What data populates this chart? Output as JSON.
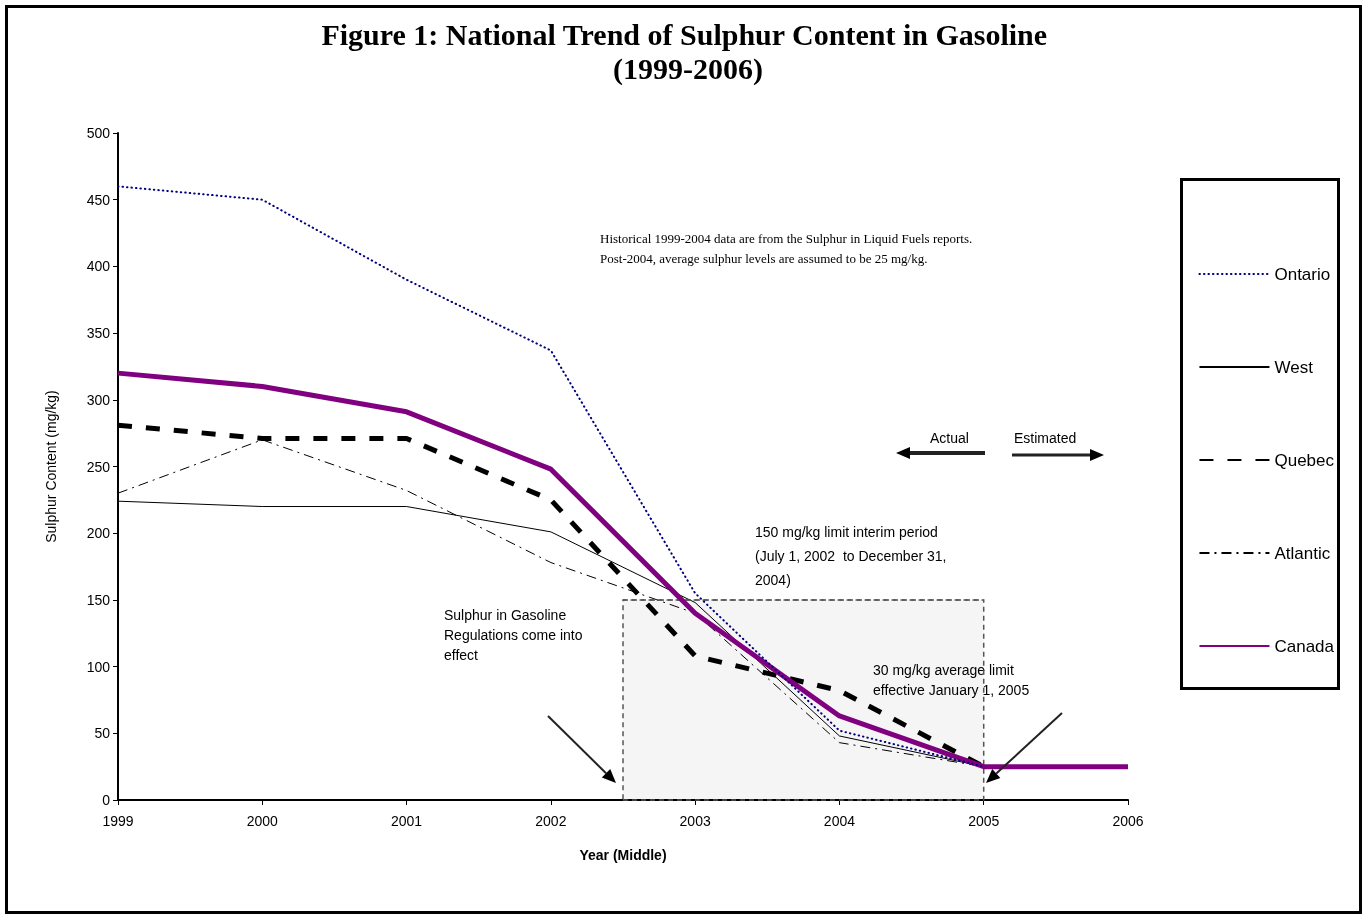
{
  "chart_data": {
    "type": "line",
    "title": "Figure 1: National Trend of Sulphur Content in Gasoline (1999-2006)",
    "xlabel": "Year (Middle)",
    "ylabel": "Sulphur Content (mg/kg)",
    "series": [
      {
        "name": "Ontario",
        "color": "#000080",
        "line_style": "dotted",
        "x": [
          1999,
          2000,
          2001,
          2002,
          2003,
          2004,
          2005
        ],
        "values": [
          460,
          450,
          390,
          337,
          155,
          52,
          25
        ]
      },
      {
        "name": "West",
        "color": "#000000",
        "line_style": "solid",
        "x": [
          1999,
          2000,
          2001,
          2002,
          2003,
          2004,
          2005
        ],
        "values": [
          224,
          220,
          220,
          201,
          148,
          48,
          25
        ]
      },
      {
        "name": "Quebec",
        "color": "#000000",
        "line_style": "dashed",
        "x": [
          1999,
          2000,
          2001,
          2002,
          2003,
          2004,
          2005
        ],
        "values": [
          281,
          271,
          271,
          225,
          108,
          82,
          25
        ]
      },
      {
        "name": "Atlantic",
        "color": "#000000",
        "line_style": "dashed",
        "x": [
          1999,
          2000,
          2001,
          2002,
          2003,
          2004,
          2005
        ],
        "values": [
          230,
          270,
          232,
          178,
          140,
          43,
          25
        ]
      },
      {
        "name": "Canada",
        "color": "#800080",
        "line_style": "solid",
        "x": [
          1999,
          2000,
          2001,
          2002,
          2003,
          2004,
          2005,
          2006
        ],
        "values": [
          320,
          310,
          291,
          248,
          140,
          63,
          25,
          25
        ]
      }
    ],
    "xlim": [
      1999,
      2006
    ],
    "xticks": [
      1999,
      2000,
      2001,
      2002,
      2003,
      2004,
      2005,
      2006
    ],
    "ylim": [
      0,
      500
    ],
    "yticks": [
      0,
      50,
      100,
      150,
      200,
      250,
      300,
      350,
      400,
      450,
      500
    ],
    "grid": false,
    "legend": "right",
    "marker": "none",
    "bands": [
      {
        "axis": "x",
        "from": 2002.5,
        "to": 2005,
        "label": "150 mg/kg limit interim period (July 1, 2002  to December 31, 2004)"
      }
    ],
    "ref_lines": [
      {
        "axis": "y",
        "value": 150
      }
    ],
    "annotations": [
      "Historical 1999-2004 data are from the Sulphur in Liquid Fuels reports. Post-2004, average sulphur levels are assumed to be 25 mg/kg.",
      "Actual",
      "Estimated",
      "Sulphur in Gasoline Regulations come into effect",
      "30 mg/kg average limit effective January 1, 2005"
    ]
  }
}
